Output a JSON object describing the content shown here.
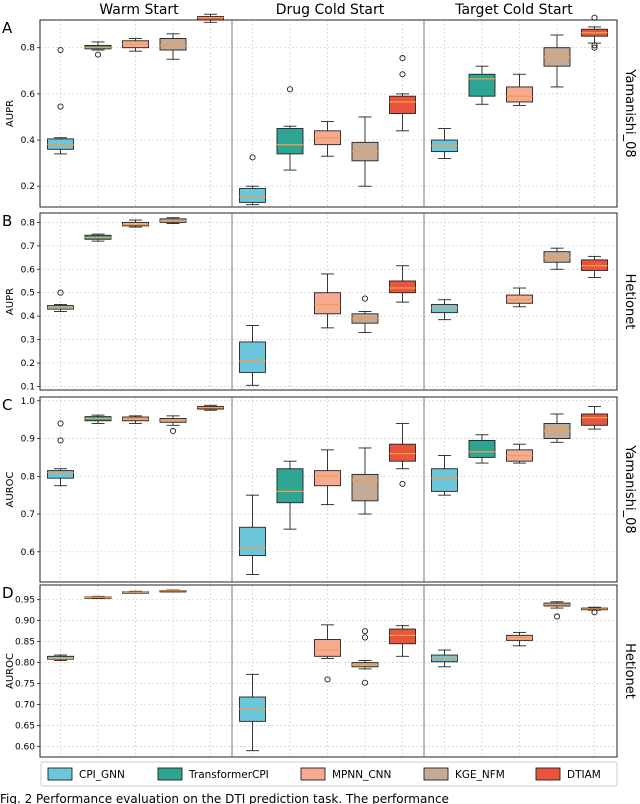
{
  "chart_data": {
    "type": "box",
    "column_titles": [
      "Warm Start",
      "Drug Cold Start",
      "Target Cold Start"
    ],
    "legend": [
      {
        "name": "CPI_GNN",
        "color": "#6cc6dc"
      },
      {
        "name": "TransformerCPI",
        "color": "#2ea593"
      },
      {
        "name": "MPNN_CNN",
        "color": "#f5ab92"
      },
      {
        "name": "KGE_NFM",
        "color": "#c3ab98"
      },
      {
        "name": "DTIAM",
        "color": "#e9543d"
      }
    ],
    "median_color": "#f39c4a",
    "caption": "Fig. 2 Performance evaluation on the DTI prediction task. The performance",
    "panels": [
      {
        "label": "A",
        "ylabel": "AUPR",
        "dataset": "Yamanishi_08",
        "ylim": [
          0.11,
          0.92
        ],
        "yticks": [
          0.2,
          0.4,
          0.6,
          0.8
        ],
        "tick_labels": [
          "0.2",
          "0.4",
          "0.6",
          "0.8"
        ],
        "groups": [
          [
            {
              "model": "CPI_GNN",
              "whislo": 0.34,
              "q1": 0.36,
              "med": 0.38,
              "q3": 0.405,
              "whishi": 0.41,
              "fliers": [
                0.545,
                0.79
              ]
            },
            {
              "model": "TransformerCPI",
              "whislo": 0.79,
              "q1": 0.795,
              "med": 0.8,
              "q3": 0.81,
              "whishi": 0.825,
              "fliers": [
                0.77
              ]
            },
            {
              "model": "MPNN_CNN",
              "whislo": 0.785,
              "q1": 0.8,
              "med": 0.815,
              "q3": 0.83,
              "whishi": 0.84,
              "fliers": []
            },
            {
              "model": "KGE_NFM",
              "whislo": 0.75,
              "q1": 0.79,
              "med": 0.81,
              "q3": 0.84,
              "whishi": 0.86,
              "fliers": []
            },
            {
              "model": "DTIAM",
              "whislo": 0.91,
              "q1": 0.92,
              "med": 0.93,
              "q3": 0.935,
              "whishi": 0.945,
              "fliers": []
            }
          ],
          [
            {
              "model": "CPI_GNN",
              "whislo": 0.12,
              "q1": 0.13,
              "med": 0.155,
              "q3": 0.19,
              "whishi": 0.2,
              "fliers": [
                0.325
              ]
            },
            {
              "model": "TransformerCPI",
              "whislo": 0.27,
              "q1": 0.34,
              "med": 0.38,
              "q3": 0.45,
              "whishi": 0.46,
              "fliers": [
                0.62
              ]
            },
            {
              "model": "MPNN_CNN",
              "whislo": 0.33,
              "q1": 0.38,
              "med": 0.41,
              "q3": 0.44,
              "whishi": 0.48,
              "fliers": []
            },
            {
              "model": "KGE_NFM",
              "whislo": 0.2,
              "q1": 0.31,
              "med": 0.35,
              "q3": 0.39,
              "whishi": 0.5,
              "fliers": []
            },
            {
              "model": "DTIAM",
              "whislo": 0.44,
              "q1": 0.515,
              "med": 0.565,
              "q3": 0.59,
              "whishi": 0.6,
              "fliers": [
                0.685,
                0.755
              ]
            }
          ],
          [
            {
              "model": "CPI_GNN",
              "whislo": 0.32,
              "q1": 0.35,
              "med": 0.375,
              "q3": 0.4,
              "whishi": 0.45,
              "fliers": []
            },
            {
              "model": "TransformerCPI",
              "whislo": 0.555,
              "q1": 0.59,
              "med": 0.665,
              "q3": 0.685,
              "whishi": 0.72,
              "fliers": []
            },
            {
              "model": "MPNN_CNN",
              "whislo": 0.55,
              "q1": 0.565,
              "med": 0.59,
              "q3": 0.63,
              "whishi": 0.685,
              "fliers": []
            },
            {
              "model": "KGE_NFM",
              "whislo": 0.63,
              "q1": 0.72,
              "med": 0.76,
              "q3": 0.8,
              "whishi": 0.855,
              "fliers": []
            },
            {
              "model": "DTIAM",
              "whislo": 0.82,
              "q1": 0.85,
              "med": 0.865,
              "q3": 0.88,
              "whishi": 0.89,
              "fliers": [
                0.8,
                0.81,
                0.93
              ]
            }
          ]
        ]
      },
      {
        "label": "B",
        "ylabel": "AUPR",
        "dataset": "Hetionet",
        "ylim": [
          0.085,
          0.84
        ],
        "yticks": [
          0.1,
          0.2,
          0.3,
          0.4,
          0.5,
          0.6,
          0.7,
          0.8
        ],
        "tick_labels": [
          "0.1",
          "0.2",
          "0.3",
          "0.4",
          "0.5",
          "0.6",
          "0.7",
          "0.8"
        ],
        "groups": [
          [
            {
              "model": "CPI_GNN",
              "whislo": 0.42,
              "q1": 0.43,
              "med": 0.435,
              "q3": 0.445,
              "whishi": 0.45,
              "fliers": [
                0.5
              ]
            },
            {
              "model": "TransformerCPI",
              "whislo": 0.72,
              "q1": 0.728,
              "med": 0.735,
              "q3": 0.745,
              "whishi": 0.75,
              "fliers": []
            },
            {
              "model": "MPNN_CNN",
              "whislo": 0.78,
              "q1": 0.785,
              "med": 0.79,
              "q3": 0.8,
              "whishi": 0.81,
              "fliers": []
            },
            {
              "model": "KGE_NFM",
              "whislo": 0.795,
              "q1": 0.8,
              "med": 0.807,
              "q3": 0.815,
              "whishi": 0.82,
              "fliers": []
            }
          ],
          [
            {
              "model": "CPI_GNN",
              "whislo": 0.105,
              "q1": 0.16,
              "med": 0.21,
              "q3": 0.29,
              "whishi": 0.36,
              "fliers": []
            },
            {
              "model": "MPNN_CNN",
              "whislo": 0.35,
              "q1": 0.41,
              "med": 0.45,
              "q3": 0.5,
              "whishi": 0.58,
              "fliers": []
            },
            {
              "model": "KGE_NFM",
              "whislo": 0.33,
              "q1": 0.37,
              "med": 0.39,
              "q3": 0.41,
              "whishi": 0.42,
              "fliers": [
                0.475
              ]
            },
            {
              "model": "DTIAM",
              "whislo": 0.46,
              "q1": 0.5,
              "med": 0.52,
              "q3": 0.55,
              "whishi": 0.615,
              "fliers": []
            }
          ],
          [
            {
              "model": "CPI_GNN",
              "whislo": 0.385,
              "q1": 0.415,
              "med": 0.435,
              "q3": 0.45,
              "whishi": 0.47,
              "fliers": []
            },
            {
              "model": "MPNN_CNN",
              "whislo": 0.44,
              "q1": 0.455,
              "med": 0.47,
              "q3": 0.49,
              "whishi": 0.52,
              "fliers": []
            },
            {
              "model": "KGE_NFM",
              "whislo": 0.6,
              "q1": 0.63,
              "med": 0.65,
              "q3": 0.675,
              "whishi": 0.69,
              "fliers": []
            },
            {
              "model": "DTIAM",
              "whislo": 0.565,
              "q1": 0.595,
              "med": 0.615,
              "q3": 0.64,
              "whishi": 0.655,
              "fliers": []
            }
          ]
        ]
      },
      {
        "label": "C",
        "ylabel": "AUROC",
        "dataset": "Yamanishi_08",
        "ylim": [
          0.52,
          1.01
        ],
        "yticks": [
          0.6,
          0.7,
          0.8,
          0.9,
          1.0
        ],
        "tick_labels": [
          "0.6",
          "0.7",
          "0.8",
          "0.9",
          "1.0"
        ],
        "groups": [
          [
            {
              "model": "CPI_GNN",
              "whislo": 0.775,
              "q1": 0.795,
              "med": 0.81,
              "q3": 0.815,
              "whishi": 0.82,
              "fliers": [
                0.895,
                0.94
              ]
            },
            {
              "model": "TransformerCPI",
              "whislo": 0.94,
              "q1": 0.947,
              "med": 0.953,
              "q3": 0.958,
              "whishi": 0.962,
              "fliers": []
            },
            {
              "model": "MPNN_CNN",
              "whislo": 0.94,
              "q1": 0.947,
              "med": 0.952,
              "q3": 0.957,
              "whishi": 0.96,
              "fliers": []
            },
            {
              "model": "KGE_NFM",
              "whislo": 0.935,
              "q1": 0.943,
              "med": 0.948,
              "q3": 0.953,
              "whishi": 0.96,
              "fliers": [
                0.92
              ]
            },
            {
              "model": "DTIAM",
              "whislo": 0.975,
              "q1": 0.978,
              "med": 0.982,
              "q3": 0.985,
              "whishi": 0.988,
              "fliers": []
            }
          ],
          [
            {
              "model": "CPI_GNN",
              "whislo": 0.54,
              "q1": 0.59,
              "med": 0.61,
              "q3": 0.665,
              "whishi": 0.75,
              "fliers": []
            },
            {
              "model": "TransformerCPI",
              "whislo": 0.66,
              "q1": 0.73,
              "med": 0.76,
              "q3": 0.82,
              "whishi": 0.84,
              "fliers": []
            },
            {
              "model": "MPNN_CNN",
              "whislo": 0.725,
              "q1": 0.775,
              "med": 0.8,
              "q3": 0.815,
              "whishi": 0.87,
              "fliers": []
            },
            {
              "model": "KGE_NFM",
              "whislo": 0.7,
              "q1": 0.735,
              "med": 0.79,
              "q3": 0.805,
              "whishi": 0.875,
              "fliers": []
            },
            {
              "model": "DTIAM",
              "whislo": 0.82,
              "q1": 0.84,
              "med": 0.86,
              "q3": 0.885,
              "whishi": 0.94,
              "fliers": [
                0.78
              ]
            }
          ],
          [
            {
              "model": "CPI_GNN",
              "whislo": 0.75,
              "q1": 0.76,
              "med": 0.795,
              "q3": 0.82,
              "whishi": 0.855,
              "fliers": []
            },
            {
              "model": "TransformerCPI",
              "whislo": 0.835,
              "q1": 0.85,
              "med": 0.865,
              "q3": 0.895,
              "whishi": 0.91,
              "fliers": []
            },
            {
              "model": "MPNN_CNN",
              "whislo": 0.835,
              "q1": 0.84,
              "med": 0.855,
              "q3": 0.87,
              "whishi": 0.885,
              "fliers": []
            },
            {
              "model": "KGE_NFM",
              "whislo": 0.89,
              "q1": 0.9,
              "med": 0.92,
              "q3": 0.94,
              "whishi": 0.965,
              "fliers": []
            },
            {
              "model": "DTIAM",
              "whislo": 0.925,
              "q1": 0.935,
              "med": 0.955,
              "q3": 0.965,
              "whishi": 0.985,
              "fliers": []
            }
          ]
        ]
      },
      {
        "label": "D",
        "ylabel": "AUROC",
        "dataset": "Hetionet",
        "ylim": [
          0.575,
          0.985
        ],
        "yticks": [
          0.6,
          0.65,
          0.7,
          0.75,
          0.8,
          0.85,
          0.9,
          0.95
        ],
        "tick_labels": [
          "0.60",
          "0.65",
          "0.70",
          "0.75",
          "0.80",
          "0.85",
          "0.90",
          "0.95"
        ],
        "groups": [
          [
            {
              "model": "CPI_GNN",
              "whislo": 0.805,
              "q1": 0.808,
              "med": 0.81,
              "q3": 0.815,
              "whishi": 0.818,
              "fliers": []
            },
            {
              "model": "TransformerCPI",
              "whislo": 0.953,
              "q1": 0.955,
              "med": 0.956,
              "q3": 0.957,
              "whishi": 0.958,
              "fliers": []
            },
            {
              "model": "MPNN_CNN",
              "whislo": 0.966,
              "q1": 0.967,
              "med": 0.968,
              "q3": 0.969,
              "whishi": 0.97,
              "fliers": []
            },
            {
              "model": "KGE_NFM",
              "whislo": 0.969,
              "q1": 0.97,
              "med": 0.971,
              "q3": 0.972,
              "whishi": 0.973,
              "fliers": []
            }
          ],
          [
            {
              "model": "CPI_GNN",
              "whislo": 0.59,
              "q1": 0.66,
              "med": 0.69,
              "q3": 0.718,
              "whishi": 0.772,
              "fliers": []
            },
            {
              "model": "MPNN_CNN",
              "whislo": 0.81,
              "q1": 0.815,
              "med": 0.83,
              "q3": 0.855,
              "whishi": 0.89,
              "fliers": [
                0.76
              ]
            },
            {
              "model": "KGE_NFM",
              "whislo": 0.785,
              "q1": 0.79,
              "med": 0.795,
              "q3": 0.8,
              "whishi": 0.805,
              "fliers": [
                0.752,
                0.86,
                0.875
              ]
            },
            {
              "model": "DTIAM",
              "whislo": 0.815,
              "q1": 0.845,
              "med": 0.865,
              "q3": 0.88,
              "whishi": 0.888,
              "fliers": []
            }
          ],
          [
            {
              "model": "CPI_GNN",
              "whislo": 0.79,
              "q1": 0.802,
              "med": 0.81,
              "q3": 0.818,
              "whishi": 0.83,
              "fliers": []
            },
            {
              "model": "MPNN_CNN",
              "whislo": 0.84,
              "q1": 0.853,
              "med": 0.86,
              "q3": 0.865,
              "whishi": 0.872,
              "fliers": []
            },
            {
              "model": "KGE_NFM",
              "whislo": 0.93,
              "q1": 0.935,
              "med": 0.938,
              "q3": 0.942,
              "whishi": 0.945,
              "fliers": [
                0.91
              ]
            },
            {
              "model": "DTIAM",
              "whislo": 0.925,
              "q1": 0.926,
              "med": 0.928,
              "q3": 0.93,
              "whishi": 0.932,
              "fliers": [
                0.92
              ]
            }
          ]
        ]
      }
    ]
  }
}
